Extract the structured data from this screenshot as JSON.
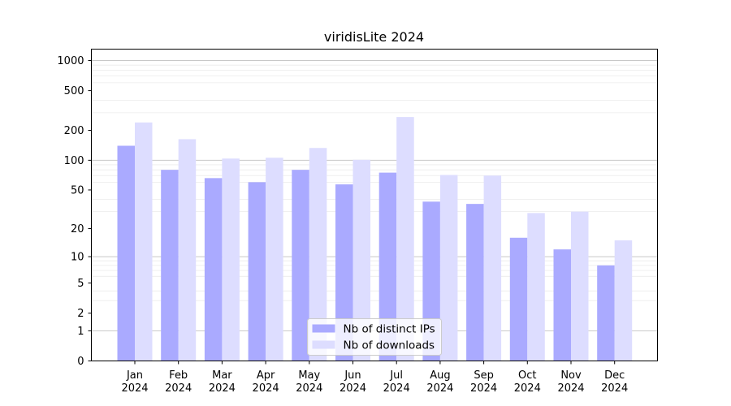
{
  "chart_data": {
    "type": "bar",
    "title": "viridisLite 2024",
    "xlabel": "",
    "ylabel": "",
    "y_scale": "log1p",
    "ylim": [
      0,
      1300
    ],
    "yticks": [
      0,
      1,
      2,
      5,
      10,
      20,
      50,
      100,
      200,
      500,
      1000
    ],
    "grid": true,
    "legend_position": "lower center",
    "categories": [
      [
        "Jan",
        "2024"
      ],
      [
        "Feb",
        "2024"
      ],
      [
        "Mar",
        "2024"
      ],
      [
        "Apr",
        "2024"
      ],
      [
        "May",
        "2024"
      ],
      [
        "Jun",
        "2024"
      ],
      [
        "Jul",
        "2024"
      ],
      [
        "Aug",
        "2024"
      ],
      [
        "Sep",
        "2024"
      ],
      [
        "Oct",
        "2024"
      ],
      [
        "Nov",
        "2024"
      ],
      [
        "Dec",
        "2024"
      ]
    ],
    "series": [
      {
        "name": "Nb of distinct IPs",
        "color": "#aaaaff",
        "values": [
          140,
          80,
          66,
          60,
          80,
          57,
          75,
          38,
          36,
          16,
          12,
          8
        ]
      },
      {
        "name": "Nb of downloads",
        "color": "#ddddff",
        "values": [
          240,
          163,
          104,
          106,
          133,
          101,
          272,
          71,
          70,
          29,
          30,
          15
        ]
      }
    ]
  }
}
